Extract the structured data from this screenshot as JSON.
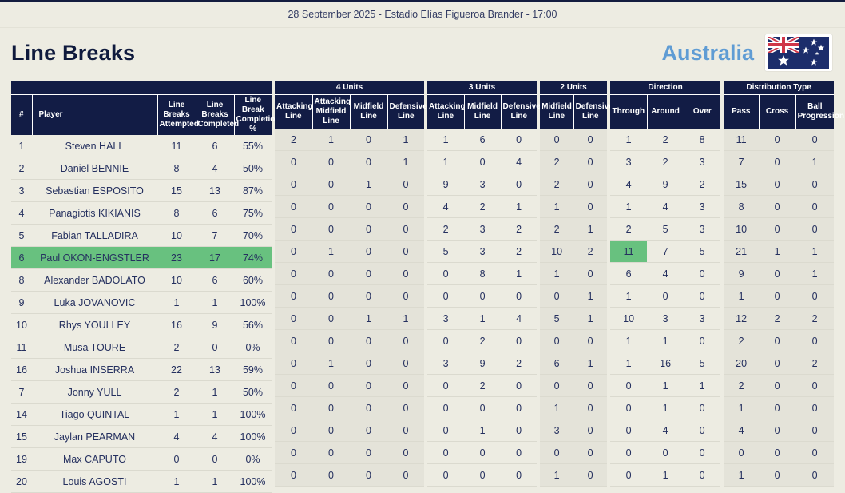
{
  "header": {
    "match_info": "28 September 2025 - Estadio Elías Figueroa Brander - 17:00",
    "title": "Line Breaks",
    "team": "Australia",
    "team_flag": "australia-flag-icon"
  },
  "colors": {
    "background": "#edece2",
    "header_navy": "#121c45",
    "text_navy": "#25305f",
    "faded_zero": "#c7c9c1",
    "highlight_green": "#68c17f",
    "team_blue": "#5f9cd4",
    "shaded_column": "#e4e3d9"
  },
  "table": {
    "main_columns": [
      "#",
      "Player",
      "Line Breaks Attempted",
      "Line Breaks Completed",
      "Line Break Completion %"
    ],
    "groups": [
      {
        "label": "4 Units",
        "columns": [
          "Attacking Line",
          "Attacking Midfield Line",
          "Midfield Line",
          "Defensive Line"
        ],
        "shaded": true
      },
      {
        "label": "3 Units",
        "columns": [
          "Attacking Line",
          "Midfield Line",
          "Defensive Line"
        ],
        "shaded": false
      },
      {
        "label": "2 Units",
        "columns": [
          "Midfield Line",
          "Defensive Line"
        ],
        "shaded": true
      },
      {
        "label": "Direction",
        "columns": [
          "Through",
          "Around",
          "Over"
        ],
        "shaded": false
      },
      {
        "label": "Distribution Type",
        "columns": [
          "Pass",
          "Cross",
          "Ball Progression"
        ],
        "shaded": true
      }
    ],
    "rows": [
      {
        "num": 1,
        "player": "Steven HALL",
        "attempted": 11,
        "completed": 6,
        "completion": "55%",
        "units4": [
          2,
          1,
          0,
          1
        ],
        "units3": [
          1,
          6,
          0
        ],
        "units2": [
          0,
          0
        ],
        "direction": [
          1,
          2,
          8
        ],
        "distribution": [
          11,
          0,
          0
        ]
      },
      {
        "num": 2,
        "player": "Daniel BENNIE",
        "attempted": 8,
        "completed": 4,
        "completion": "50%",
        "units4": [
          0,
          0,
          0,
          1
        ],
        "units3": [
          1,
          0,
          4
        ],
        "units2": [
          2,
          0
        ],
        "direction": [
          3,
          2,
          3
        ],
        "distribution": [
          7,
          0,
          1
        ]
      },
      {
        "num": 3,
        "player": "Sebastian ESPOSITO",
        "attempted": 15,
        "completed": 13,
        "completion": "87%",
        "units4": [
          0,
          0,
          1,
          0
        ],
        "units3": [
          9,
          3,
          0
        ],
        "units2": [
          2,
          0
        ],
        "direction": [
          4,
          9,
          2
        ],
        "distribution": [
          15,
          0,
          0
        ]
      },
      {
        "num": 4,
        "player": "Panagiotis KIKIANIS",
        "attempted": 8,
        "completed": 6,
        "completion": "75%",
        "units4": [
          0,
          0,
          0,
          0
        ],
        "units3": [
          4,
          2,
          1
        ],
        "units2": [
          1,
          0
        ],
        "direction": [
          1,
          4,
          3
        ],
        "distribution": [
          8,
          0,
          0
        ]
      },
      {
        "num": 5,
        "player": "Fabian TALLADIRA",
        "attempted": 10,
        "completed": 7,
        "completion": "70%",
        "units4": [
          0,
          0,
          0,
          0
        ],
        "units3": [
          2,
          3,
          2
        ],
        "units2": [
          2,
          1
        ],
        "direction": [
          2,
          5,
          3
        ],
        "distribution": [
          10,
          0,
          0
        ]
      },
      {
        "num": 6,
        "player": "Paul OKON-ENGSTLER",
        "attempted": 23,
        "completed": 17,
        "completion": "74%",
        "units4": [
          0,
          1,
          0,
          0
        ],
        "units3": [
          5,
          3,
          2
        ],
        "units2": [
          10,
          2
        ],
        "direction": [
          11,
          7,
          5
        ],
        "distribution": [
          21,
          1,
          1
        ],
        "highlighted": true,
        "highlighted_cells": [
          "direction:0"
        ]
      },
      {
        "num": 8,
        "player": "Alexander BADOLATO",
        "attempted": 10,
        "completed": 6,
        "completion": "60%",
        "units4": [
          0,
          0,
          0,
          0
        ],
        "units3": [
          0,
          8,
          1
        ],
        "units2": [
          1,
          0
        ],
        "direction": [
          6,
          4,
          0
        ],
        "distribution": [
          9,
          0,
          1
        ]
      },
      {
        "num": 9,
        "player": "Luka JOVANOVIC",
        "attempted": 1,
        "completed": 1,
        "completion": "100%",
        "units4": [
          0,
          0,
          0,
          0
        ],
        "units3": [
          0,
          0,
          0
        ],
        "units2": [
          0,
          1
        ],
        "direction": [
          1,
          0,
          0
        ],
        "distribution": [
          1,
          0,
          0
        ]
      },
      {
        "num": 10,
        "player": "Rhys YOULLEY",
        "attempted": 16,
        "completed": 9,
        "completion": "56%",
        "units4": [
          0,
          0,
          1,
          1
        ],
        "units3": [
          3,
          1,
          4
        ],
        "units2": [
          5,
          1
        ],
        "direction": [
          10,
          3,
          3
        ],
        "distribution": [
          12,
          2,
          2
        ]
      },
      {
        "num": 11,
        "player": "Musa TOURE",
        "attempted": 2,
        "completed": 0,
        "completion": "0%",
        "units4": [
          0,
          0,
          0,
          0
        ],
        "units3": [
          0,
          2,
          0
        ],
        "units2": [
          0,
          0
        ],
        "direction": [
          1,
          1,
          0
        ],
        "distribution": [
          2,
          0,
          0
        ]
      },
      {
        "num": 16,
        "player": "Joshua INSERRA",
        "attempted": 22,
        "completed": 13,
        "completion": "59%",
        "units4": [
          0,
          1,
          0,
          0
        ],
        "units3": [
          3,
          9,
          2
        ],
        "units2": [
          6,
          1
        ],
        "direction": [
          1,
          16,
          5
        ],
        "distribution": [
          20,
          0,
          2
        ]
      },
      {
        "num": 7,
        "player": "Jonny YULL",
        "attempted": 2,
        "completed": 1,
        "completion": "50%",
        "units4": [
          0,
          0,
          0,
          0
        ],
        "units3": [
          0,
          2,
          0
        ],
        "units2": [
          0,
          0
        ],
        "direction": [
          0,
          1,
          1
        ],
        "distribution": [
          2,
          0,
          0
        ]
      },
      {
        "num": 14,
        "player": "Tiago QUINTAL",
        "attempted": 1,
        "completed": 1,
        "completion": "100%",
        "units4": [
          0,
          0,
          0,
          0
        ],
        "units3": [
          0,
          0,
          0
        ],
        "units2": [
          1,
          0
        ],
        "direction": [
          0,
          1,
          0
        ],
        "distribution": [
          1,
          0,
          0
        ]
      },
      {
        "num": 15,
        "player": "Jaylan PEARMAN",
        "attempted": 4,
        "completed": 4,
        "completion": "100%",
        "units4": [
          0,
          0,
          0,
          0
        ],
        "units3": [
          0,
          1,
          0
        ],
        "units2": [
          3,
          0
        ],
        "direction": [
          0,
          4,
          0
        ],
        "distribution": [
          4,
          0,
          0
        ]
      },
      {
        "num": 19,
        "player": "Max CAPUTO",
        "attempted": 0,
        "completed": 0,
        "completion": "0%",
        "units4": [
          0,
          0,
          0,
          0
        ],
        "units3": [
          0,
          0,
          0
        ],
        "units2": [
          0,
          0
        ],
        "direction": [
          0,
          0,
          0
        ],
        "distribution": [
          0,
          0,
          0
        ]
      },
      {
        "num": 20,
        "player": "Louis AGOSTI",
        "attempted": 1,
        "completed": 1,
        "completion": "100%",
        "units4": [
          0,
          0,
          0,
          0
        ],
        "units3": [
          0,
          0,
          0
        ],
        "units2": [
          1,
          0
        ],
        "direction": [
          0,
          1,
          0
        ],
        "distribution": [
          1,
          0,
          0
        ]
      }
    ]
  }
}
